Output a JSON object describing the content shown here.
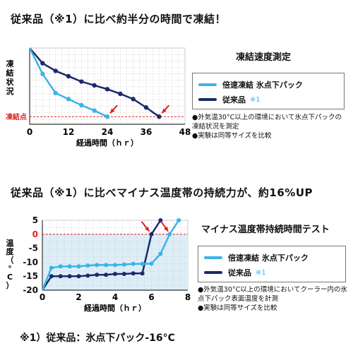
{
  "headings": {
    "top": "従来品（※1）に比べ約半分の時間で凍結！",
    "bottom": "従来品（※1）に比べマイナス温度帯の持続力が、約16%UP",
    "footnote": "※1）従来品：氷点下パック-16°C"
  },
  "panel1": {
    "title": "凍結速度測定",
    "legend": {
      "fast": "倍速凍結 氷点下パック",
      "old": "従来品",
      "old_note": "※1"
    },
    "notes": [
      "●外気温30°C以上の環境において氷点下パックの凍結状況を測定",
      "●実験は同等サイズを比較"
    ]
  },
  "panel2": {
    "title": "マイナス温度帯持続時間テスト",
    "legend": {
      "fast": "倍速凍結 氷点下パック",
      "old": "従来品",
      "old_note": "※1"
    },
    "notes": [
      "●外気温30°C以上の環境においてクーラー内の氷点下パック表面温度を計測",
      "●実験は同等サイズを比較"
    ]
  },
  "colors": {
    "fast": "#3ab4e6",
    "old": "#1b2a6b",
    "arrow": "#e02020",
    "freeze_line": "#e02020",
    "plot_bg": "#ddeef8"
  },
  "chart_data": [
    {
      "type": "line",
      "xlabel": "経過時間（ｈｒ）",
      "ylabel": "凍結状況",
      "xticks": [
        0,
        12,
        24,
        36,
        48
      ],
      "xlim": [
        0,
        48
      ],
      "ylim": [
        0,
        100
      ],
      "reference_line": {
        "label": "凍結点",
        "y": 10
      },
      "series": [
        {
          "name": "倍速凍結 氷点下パック",
          "x": [
            0,
            4,
            8,
            12,
            16,
            20,
            24
          ],
          "y": [
            100,
            66,
            41,
            33,
            25,
            18,
            10
          ]
        },
        {
          "name": "従来品",
          "x": [
            0,
            4,
            8,
            12,
            16,
            20,
            24,
            28,
            32,
            36,
            40
          ],
          "y": [
            100,
            80,
            70,
            63,
            56,
            51,
            46,
            40,
            33,
            22,
            10
          ]
        }
      ]
    },
    {
      "type": "line",
      "xlabel": "経過時間（ｈｒ）",
      "ylabel": "温度（°C）",
      "xticks": [
        0,
        2,
        4,
        6,
        8
      ],
      "xlim": [
        0,
        8
      ],
      "yticks": [
        5,
        0,
        -5,
        -10,
        -15,
        -20
      ],
      "ylim": [
        -20,
        5
      ],
      "reference_line": {
        "label": "0",
        "y": 0
      },
      "series": [
        {
          "name": "倍速凍結 氷点下パック",
          "x": [
            0,
            0.5,
            1,
            1.5,
            2,
            2.5,
            3,
            3.5,
            4,
            4.5,
            5,
            5.5,
            6,
            6.5,
            7,
            7.5
          ],
          "y": [
            -20,
            -12,
            -11.5,
            -11.5,
            -11.5,
            -11.2,
            -11,
            -11,
            -11,
            -10.8,
            -10.6,
            -10.6,
            -10.5,
            -7,
            0,
            5
          ]
        },
        {
          "name": "従来品",
          "x": [
            0,
            0.5,
            1,
            1.5,
            2,
            2.5,
            3,
            3.5,
            4,
            4.5,
            5,
            5.5,
            6,
            6.5
          ],
          "y": [
            -20,
            -15,
            -15,
            -15,
            -15,
            -14.8,
            -14.5,
            -14.5,
            -14.2,
            -14.2,
            -14,
            -14,
            0,
            5
          ]
        }
      ]
    }
  ]
}
